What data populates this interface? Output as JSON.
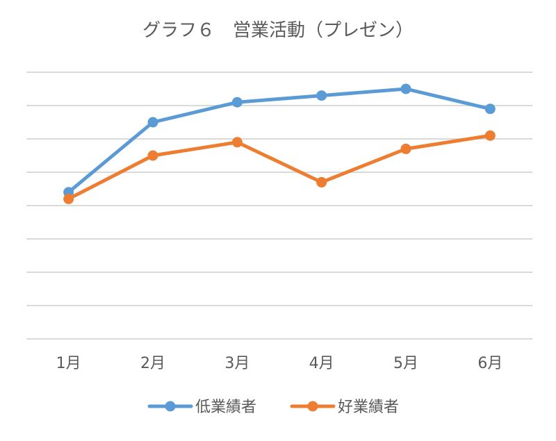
{
  "chart_data": {
    "type": "line",
    "title": "グラフ６　営業活動（プレゼン）",
    "xlabel": "",
    "ylabel": "",
    "categories": [
      "1月",
      "2月",
      "3月",
      "4月",
      "5月",
      "6月"
    ],
    "ylim": [
      0,
      8
    ],
    "y_ticks": [
      0,
      1,
      2,
      3,
      4,
      5,
      6,
      7,
      8
    ],
    "y_tick_labels_visible": false,
    "grid": true,
    "legend_position": "bottom",
    "series": [
      {
        "name": "低業績者",
        "color": "#5B9BD5",
        "values": [
          4.4,
          6.5,
          7.1,
          7.3,
          7.5,
          6.9
        ]
      },
      {
        "name": "好業績者",
        "color": "#ED7D31",
        "values": [
          4.2,
          5.5,
          5.9,
          4.7,
          5.7,
          6.1
        ]
      }
    ]
  }
}
